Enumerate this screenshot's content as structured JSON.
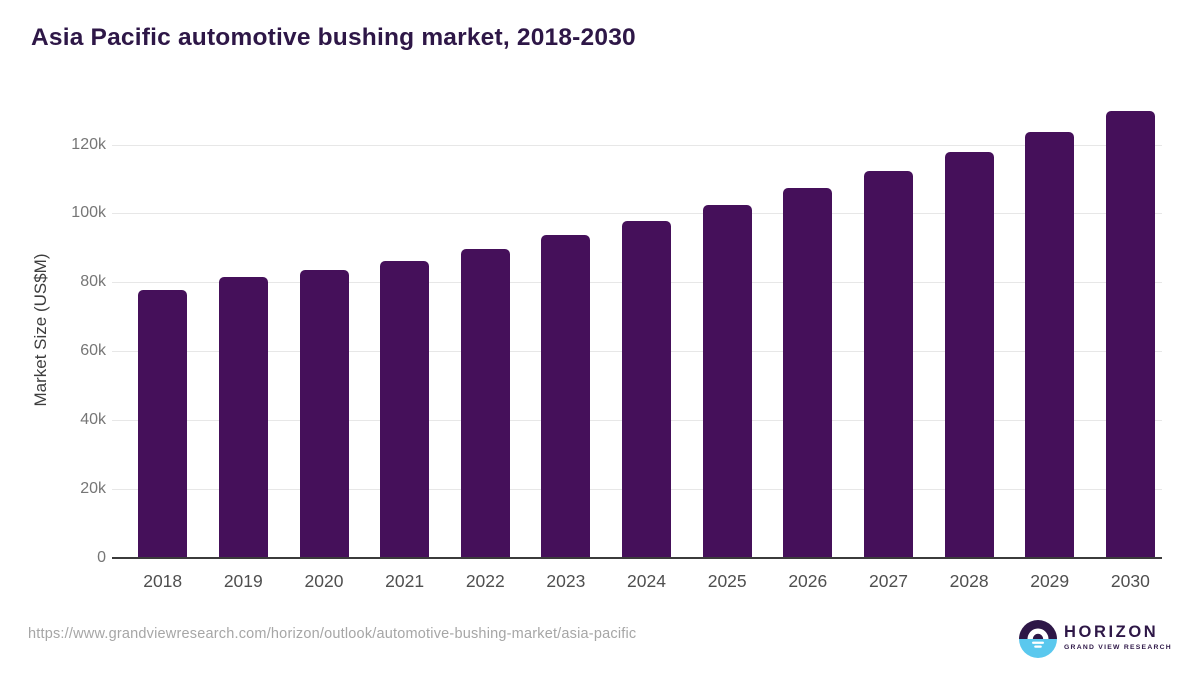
{
  "page": {
    "title": "Asia Pacific automotive bushing market, 2018-2030"
  },
  "chart_data": {
    "type": "bar",
    "title": "Asia Pacific automotive bushing market, 2018-2030",
    "categories": [
      "2018",
      "2019",
      "2020",
      "2021",
      "2022",
      "2023",
      "2024",
      "2025",
      "2026",
      "2027",
      "2028",
      "2029",
      "2030"
    ],
    "values": [
      77700,
      81600,
      83500,
      86100,
      89800,
      93700,
      97800,
      102400,
      107400,
      112300,
      117900,
      123700,
      129800
    ],
    "xlabel": "",
    "ylabel": "Market Size (US$M)",
    "ylim": [
      0,
      130000
    ],
    "yticks": [
      0,
      20000,
      40000,
      60000,
      80000,
      100000,
      120000
    ],
    "ytick_labels": [
      "0",
      "20k",
      "40k",
      "60k",
      "80k",
      "100k",
      "120k"
    ],
    "grid": true,
    "legend": false,
    "units": "US$M"
  },
  "footer": {
    "source_url": "https://www.grandviewresearch.com/horizon/outlook/automotive-bushing-market/asia-pacific",
    "logo": {
      "wordmark": "HORIZON",
      "tagline": "GRAND VIEW RESEARCH"
    }
  },
  "colors": {
    "title_text": "#2e1747",
    "bar_fill": "#45105a",
    "gridline": "#e7e7e7",
    "axis_line": "#3b3b3b",
    "y_tick_text": "#767676",
    "x_tick_text": "#4f4f4f",
    "url_text": "#a6a6a6",
    "logo_purple": "#2e1747",
    "logo_blue": "#5ac8ee",
    "background": "#ffffff"
  }
}
